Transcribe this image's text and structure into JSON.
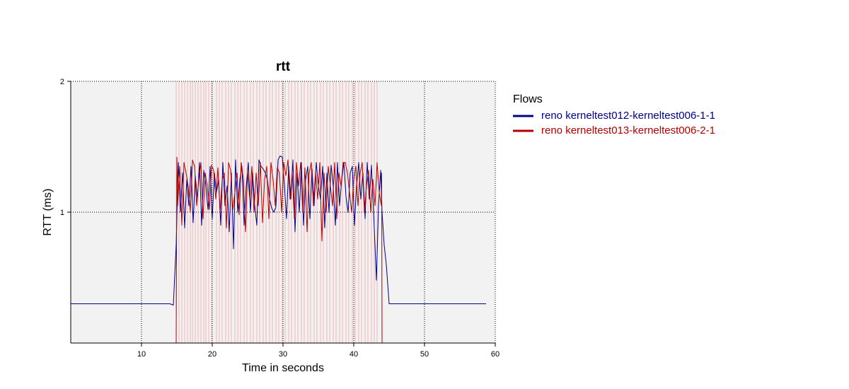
{
  "chart_data": {
    "type": "line",
    "title": "rtt",
    "xlabel": "Time in seconds",
    "ylabel": "RTT (ms)",
    "xlim": [
      0,
      60
    ],
    "ylim": [
      0,
      2
    ],
    "xticks": [
      10,
      20,
      30,
      40,
      50,
      60
    ],
    "yticks": [
      1,
      2
    ],
    "grid": true,
    "legend_title": "Flows",
    "legend_position": "right",
    "colors": {
      "plot_background": "#f2f2f2",
      "grid": "#000000",
      "event_lines": "#f2b6b6"
    },
    "event_lines_x": [
      14.9,
      15.3,
      15.7,
      16.1,
      16.5,
      16.9,
      17.2,
      17.6,
      18.0,
      18.4,
      18.8,
      19.1,
      19.5,
      19.9,
      20.6,
      21.0,
      21.4,
      21.9,
      22.3,
      22.7,
      23.2,
      23.6,
      24.0,
      24.5,
      24.9,
      25.4,
      25.8,
      26.3,
      26.7,
      27.2,
      27.6,
      28.1,
      28.5,
      29.0,
      29.4,
      29.9,
      30.3,
      30.8,
      31.2,
      31.7,
      32.1,
      32.6,
      33.0,
      33.5,
      33.9,
      34.4,
      34.8,
      35.3,
      35.7,
      36.2,
      36.6,
      37.1,
      37.5,
      38.0,
      38.4,
      38.9,
      39.3,
      39.8,
      40.2,
      40.7,
      41.1,
      41.6,
      42.0,
      42.5,
      42.9,
      43.3
    ],
    "series": [
      {
        "name": "reno kerneltest012-kerneltest006-1-1",
        "color": "#00008b",
        "x": [
          0,
          2,
          4,
          6,
          8,
          10,
          12,
          14,
          14.5,
          14.9,
          15.2,
          15.5,
          15.8,
          16.1,
          16.4,
          16.7,
          17.0,
          17.3,
          17.6,
          17.9,
          18.2,
          18.5,
          18.8,
          19.1,
          19.4,
          19.7,
          20.0,
          20.3,
          20.6,
          20.9,
          21.2,
          21.5,
          21.8,
          22.1,
          22.4,
          22.7,
          23.0,
          23.3,
          23.6,
          23.9,
          24.2,
          24.5,
          24.8,
          25.1,
          25.4,
          25.7,
          26.0,
          26.3,
          26.6,
          26.9,
          27.2,
          27.5,
          27.8,
          28.1,
          28.4,
          28.7,
          29.0,
          29.3,
          29.6,
          29.9,
          30.2,
          30.5,
          30.8,
          31.1,
          31.4,
          31.7,
          32.0,
          32.3,
          32.6,
          32.9,
          33.2,
          33.5,
          33.8,
          34.1,
          34.4,
          34.7,
          35.0,
          35.3,
          35.6,
          35.9,
          36.2,
          36.5,
          36.8,
          37.1,
          37.4,
          37.7,
          38.0,
          38.3,
          38.6,
          38.9,
          39.2,
          39.5,
          39.8,
          40.1,
          40.4,
          40.7,
          41.0,
          41.3,
          41.6,
          41.9,
          42.2,
          42.5,
          42.8,
          43.0,
          43.2,
          43.5,
          43.8,
          44.0,
          44.3,
          44.6,
          45.0,
          46,
          48,
          50,
          52,
          54,
          56,
          58.7
        ],
        "values": [
          0.3,
          0.3,
          0.3,
          0.3,
          0.3,
          0.3,
          0.3,
          0.3,
          0.29,
          0.75,
          1.38,
          1.0,
          1.3,
          0.88,
          1.25,
          1.05,
          1.35,
          0.92,
          1.28,
          1.1,
          1.38,
          0.9,
          1.32,
          1.2,
          1.02,
          1.35,
          0.95,
          1.3,
          1.15,
          1.25,
          0.9,
          1.38,
          1.05,
          1.2,
          0.85,
          1.3,
          0.72,
          1.4,
          1.0,
          1.25,
          1.35,
          0.9,
          1.2,
          1.38,
          1.0,
          1.3,
          1.05,
          0.9,
          1.4,
          1.35,
          1.33,
          1.3,
          1.25,
          1.1,
          1.03,
          1.0,
          1.04,
          1.4,
          1.43,
          1.42,
          1.2,
          0.95,
          1.35,
          1.1,
          1.4,
          0.85,
          1.3,
          1.0,
          1.38,
          0.9,
          1.25,
          1.35,
          0.95,
          1.33,
          1.05,
          1.38,
          1.2,
          1.1,
          1.35,
          0.88,
          1.3,
          1.0,
          1.36,
          1.2,
          0.9,
          1.38,
          1.05,
          1.25,
          1.38,
          1.12,
          1.0,
          1.3,
          1.35,
          0.9,
          1.2,
          1.38,
          1.1,
          1.3,
          0.95,
          1.38,
          1.1,
          1.36,
          1.0,
          0.75,
          0.48,
          1.05,
          1.32,
          1.0,
          0.75,
          0.6,
          0.3,
          0.3,
          0.3,
          0.3,
          0.3,
          0.3,
          0.3,
          0.3
        ]
      },
      {
        "name": "reno kerneltest013-kerneltest006-2-1",
        "color": "#b30000",
        "x": [
          0,
          14.9,
          15.0,
          15.1,
          15.4,
          15.7,
          16.0,
          16.3,
          16.6,
          16.9,
          17.2,
          17.5,
          17.8,
          18.1,
          18.4,
          18.7,
          19.0,
          19.3,
          19.6,
          19.9,
          20.2,
          20.5,
          20.8,
          21.1,
          21.4,
          21.7,
          22.0,
          22.3,
          22.6,
          22.9,
          23.2,
          23.5,
          23.8,
          24.1,
          24.4,
          24.7,
          25.0,
          25.3,
          25.6,
          25.9,
          26.2,
          26.5,
          26.8,
          27.1,
          27.4,
          27.7,
          28.0,
          28.3,
          28.6,
          28.9,
          29.2,
          29.5,
          29.8,
          30.1,
          30.4,
          30.7,
          31.0,
          31.3,
          31.6,
          31.9,
          32.2,
          32.5,
          32.8,
          33.1,
          33.4,
          33.7,
          34.0,
          34.3,
          34.6,
          34.9,
          35.2,
          35.5,
          35.8,
          36.1,
          36.4,
          36.7,
          37.0,
          37.3,
          37.6,
          37.9,
          38.2,
          38.5,
          38.8,
          39.1,
          39.4,
          39.7,
          40.0,
          40.3,
          40.6,
          40.9,
          41.2,
          41.5,
          41.8,
          42.1,
          42.4,
          42.7,
          43.0,
          43.3,
          43.6,
          43.9,
          43.95,
          44.0,
          58.7
        ],
        "values": [
          0,
          0,
          1.42,
          1.05,
          1.35,
          0.9,
          1.38,
          1.3,
          1.2,
          1.0,
          1.4,
          1.35,
          1.05,
          1.25,
          1.38,
          0.95,
          1.3,
          1.2,
          1.02,
          1.36,
          1.32,
          1.1,
          1.34,
          1.0,
          1.25,
          1.3,
          0.88,
          1.38,
          1.32,
          1.02,
          1.15,
          1.3,
          0.98,
          1.38,
          1.25,
          0.85,
          1.3,
          1.1,
          1.35,
          1.0,
          1.3,
          1.05,
          1.38,
          0.92,
          1.25,
          1.35,
          0.95,
          1.38,
          1.25,
          1.05,
          1.34,
          1.3,
          1.0,
          1.38,
          1.28,
          1.4,
          1.1,
          1.3,
          0.95,
          1.38,
          1.2,
          1.38,
          1.0,
          1.34,
          0.85,
          1.3,
          1.38,
          1.05,
          1.3,
          1.1,
          1.38,
          0.78,
          1.3,
          1.0,
          1.35,
          1.2,
          1.05,
          1.38,
          0.95,
          1.3,
          1.2,
          1.38,
          1.38,
          1.3,
          1.15,
          1.0,
          1.25,
          1.35,
          1.05,
          1.3,
          1.38,
          1.0,
          1.2,
          1.32,
          1.0,
          1.25,
          1.05,
          1.38,
          1.15,
          1.05,
          1.3,
          0,
          0
        ]
      }
    ]
  }
}
